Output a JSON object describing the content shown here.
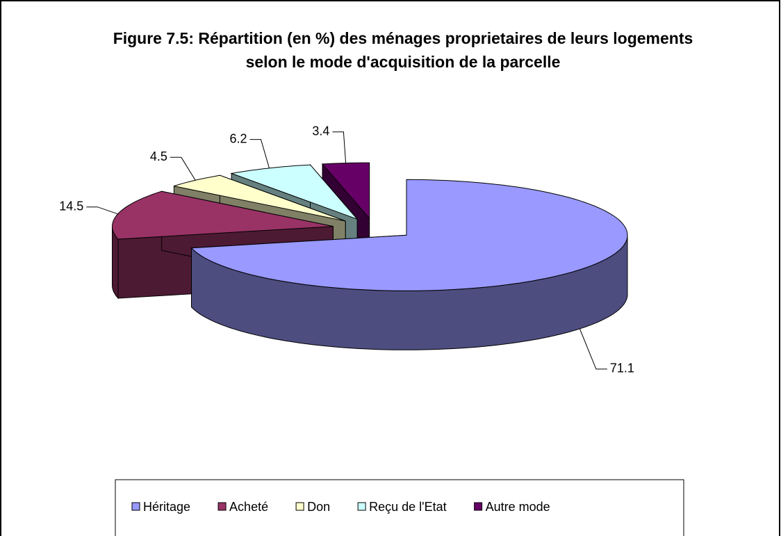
{
  "chart_data": {
    "type": "pie",
    "title": "Figure 7.5: Répartition (en %) des ménages proprietaires de leurs logements selon le mode d'acquisition de la parcelle",
    "categories": [
      "Héritage",
      "Acheté",
      "Don",
      "Reçu de l'Etat",
      "Autre mode"
    ],
    "values": [
      71.1,
      14.5,
      4.5,
      6.2,
      3.4
    ],
    "colors": [
      "#9999ff",
      "#993366",
      "#ffffcc",
      "#ccffff",
      "#660066"
    ],
    "legend": "bottom"
  }
}
